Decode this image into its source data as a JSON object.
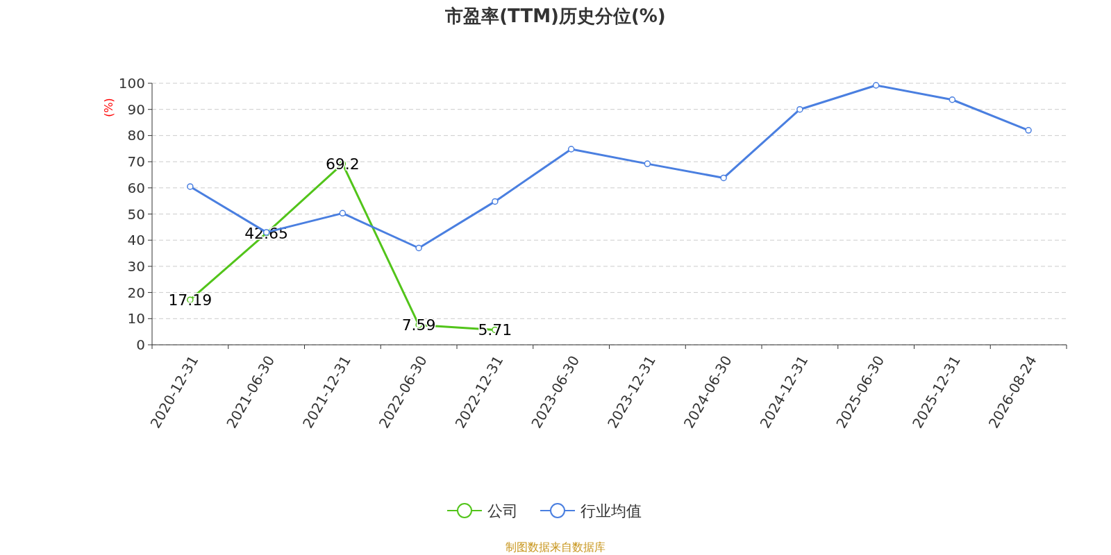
{
  "chart_data": {
    "type": "line",
    "title": "市盈率(TTM)历史分位(%)",
    "ylabel": "(%)",
    "categories": [
      "2020-12-31",
      "2021-06-30",
      "2021-12-31",
      "2022-06-30",
      "2022-12-31",
      "2023-06-30",
      "2023-12-31",
      "2024-06-30",
      "2024-12-31",
      "2025-06-30",
      "2025-12-31",
      "2026-08-24"
    ],
    "series": [
      {
        "name": "公司",
        "color": "#52c41a",
        "values": [
          17.19,
          42.65,
          69.2,
          7.59,
          5.71,
          null,
          null,
          null,
          null,
          null,
          null,
          null
        ],
        "value_labels": [
          "17.19",
          "42.65",
          "69.2",
          "7.59",
          "5.71",
          null,
          null,
          null,
          null,
          null,
          null,
          null
        ]
      },
      {
        "name": "行业均值",
        "color": "#4a7fe0",
        "values": [
          60.5,
          43,
          50.3,
          37,
          54.8,
          74.8,
          69.2,
          63.8,
          90,
          99.2,
          93.7,
          82
        ]
      }
    ],
    "ylim": [
      0,
      100
    ],
    "yticks": [
      0,
      10,
      20,
      30,
      40,
      50,
      60,
      70,
      80,
      90,
      100
    ],
    "grid": "y",
    "legend": "bottom",
    "marker": "circle",
    "line_style": "solid",
    "annotations": [
      "制图数据来自数据库"
    ]
  }
}
